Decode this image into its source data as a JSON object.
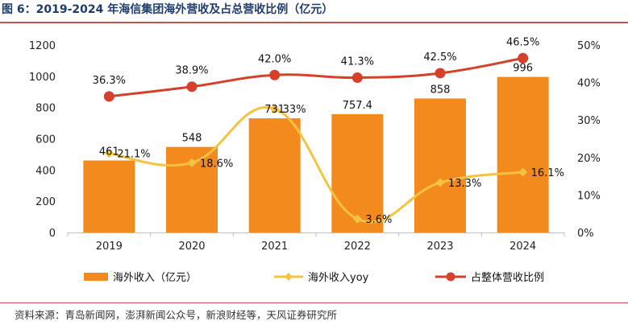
{
  "header": {
    "title": "图 6：2019-2024 年海信集团海外营收及占总营收比例（亿元）"
  },
  "footer": {
    "source": "资料来源：青岛新闻网，澎湃新闻公众号，新浪财经等，天风证券研究所"
  },
  "colors": {
    "bar": "#f28a1e",
    "yoy_line": "#f5c242",
    "ratio_line": "#d5402b",
    "rule": "#c0504d"
  },
  "chart_data": {
    "type": "bar",
    "categories": [
      "2019",
      "2020",
      "2021",
      "2022",
      "2023",
      "2024"
    ],
    "series": [
      {
        "name": "海外收入（亿元）",
        "type": "bar",
        "axis": "left",
        "values": [
          461,
          548,
          731,
          757.4,
          858,
          996
        ],
        "labels": [
          "461",
          "548",
          "731",
          "757.4",
          "858",
          "996"
        ]
      },
      {
        "name": "海外收入yoy",
        "type": "line",
        "axis": "right",
        "smooth": true,
        "values": [
          21.1,
          18.6,
          33,
          3.6,
          13.3,
          16.1
        ],
        "labels": [
          "21.1%",
          "18.6%",
          "33%",
          "3.6%",
          "13.3%",
          "16.1%"
        ]
      },
      {
        "name": "占整体营收比例",
        "type": "line",
        "axis": "right",
        "smooth": true,
        "values": [
          36.3,
          38.9,
          42.0,
          41.3,
          42.5,
          46.5
        ],
        "labels": [
          "36.3%",
          "38.9%",
          "42.0%",
          "41.3%",
          "42.5%",
          "46.5%"
        ]
      }
    ],
    "y_left": {
      "min": 0,
      "max": 1200,
      "step": 200,
      "ticks": [
        "0",
        "200",
        "400",
        "600",
        "800",
        "1000",
        "1200"
      ]
    },
    "y_right": {
      "min": 0,
      "max": 50,
      "step": 10,
      "ticks": [
        "0%",
        "10%",
        "20%",
        "30%",
        "40%",
        "50%"
      ]
    },
    "grid": false,
    "legend_position": "bottom",
    "legend": [
      "海外收入（亿元）",
      "海外收入yoy",
      "占整体营收比例"
    ]
  }
}
